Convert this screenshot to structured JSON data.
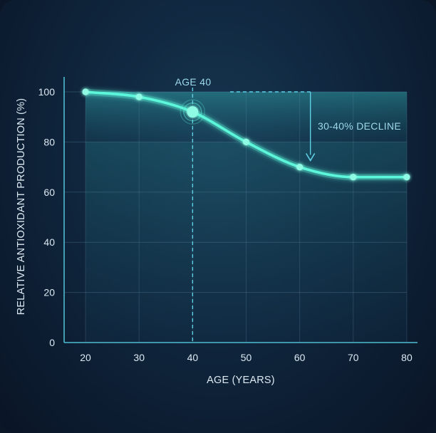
{
  "chart_data": {
    "type": "line",
    "title": "",
    "xlabel": "AGE (YEARS)",
    "ylabel": "RELATIVE ANTIOXIDANT PRODUCTION (%)",
    "xlim": [
      16,
      82
    ],
    "ylim": [
      0,
      100
    ],
    "x_ticks": [
      20,
      30,
      40,
      50,
      60,
      70,
      80
    ],
    "y_ticks": [
      0,
      20,
      40,
      60,
      80,
      100
    ],
    "grid": true,
    "series": [
      {
        "x": [
          20,
          30,
          40,
          50,
          60,
          70,
          80
        ],
        "y": [
          100,
          98,
          92,
          80,
          70,
          66,
          66
        ]
      }
    ],
    "highlight_point": {
      "x": 40,
      "y": 92
    },
    "annotations": {
      "age_marker_label": "AGE 40",
      "decline_label": "30-40% DECLINE"
    },
    "colors": {
      "line": "#5cf7da",
      "point": "#8ffbe4",
      "marker": "#5fd0e6",
      "band": "#2b8e9a"
    }
  }
}
